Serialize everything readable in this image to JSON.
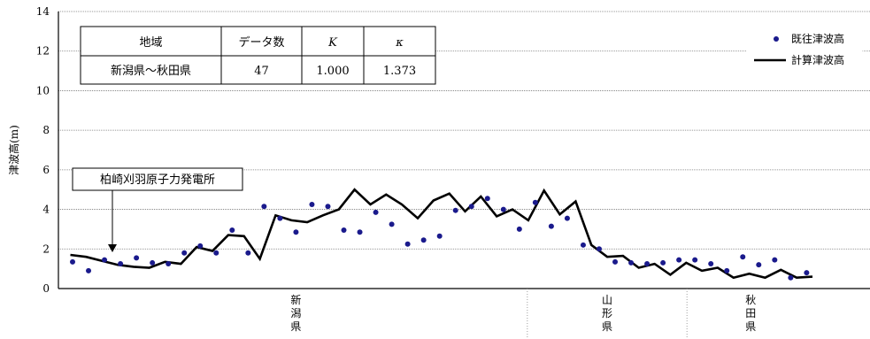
{
  "chart_data": {
    "type": "line",
    "xlabel": "",
    "ylabel": "津波高(m)",
    "ylim": [
      0,
      14
    ],
    "yticks": [
      "0",
      "2",
      "4",
      "6",
      "8",
      "10",
      "12",
      "14"
    ],
    "grid": true,
    "legend": {
      "placement": "top-right",
      "entries": [
        {
          "label": "既往津波高",
          "marker": "dot"
        },
        {
          "label": "計算津波高",
          "marker": "line"
        }
      ]
    },
    "series": [
      {
        "name": "既往津波高",
        "style": "scatter",
        "color": "#1a1a8c",
        "values": [
          1.35,
          0.9,
          1.45,
          1.25,
          1.55,
          1.3,
          1.25,
          1.8,
          2.15,
          1.8,
          2.95,
          1.8,
          4.15,
          3.55,
          2.85,
          4.25,
          4.15,
          2.95,
          2.85,
          3.85,
          3.25,
          2.25,
          2.45,
          2.65,
          3.95,
          4.15,
          4.55,
          4.0,
          3.0,
          4.35,
          3.15,
          3.55,
          2.2,
          2.0,
          1.35,
          1.3,
          1.25,
          1.3,
          1.45,
          1.45,
          1.25,
          0.9,
          1.6,
          1.2,
          1.45,
          0.55,
          0.8
        ]
      },
      {
        "name": "計算津波高",
        "style": "line",
        "color": "#000000",
        "values": [
          1.7,
          1.6,
          1.4,
          1.2,
          1.1,
          1.05,
          1.35,
          1.25,
          2.1,
          1.9,
          2.7,
          2.65,
          1.5,
          3.7,
          3.45,
          3.35,
          3.7,
          4.0,
          5.0,
          4.25,
          4.75,
          4.25,
          3.55,
          4.45,
          4.8,
          3.9,
          4.65,
          3.65,
          4.0,
          3.45,
          4.95,
          3.75,
          4.4,
          2.2,
          1.6,
          1.65,
          1.05,
          1.25,
          0.7,
          1.3,
          0.9,
          1.05,
          0.55,
          0.75,
          0.55,
          0.95,
          0.55,
          0.6
        ]
      }
    ],
    "regions": [
      {
        "label": "新\n潟\n県",
        "start": 0,
        "end": 29
      },
      {
        "label": "山\n形\n県",
        "start": 29,
        "end": 39
      },
      {
        "label": "秋\n田\n県",
        "start": 39,
        "end": 47
      }
    ],
    "table": {
      "headers": [
        "地域",
        "データ数",
        "K",
        "κ"
      ],
      "row": [
        "新潟県〜秋田県",
        "47",
        "1.000",
        "1.373"
      ]
    },
    "annotation": "柏崎刈羽原子力発電所"
  }
}
